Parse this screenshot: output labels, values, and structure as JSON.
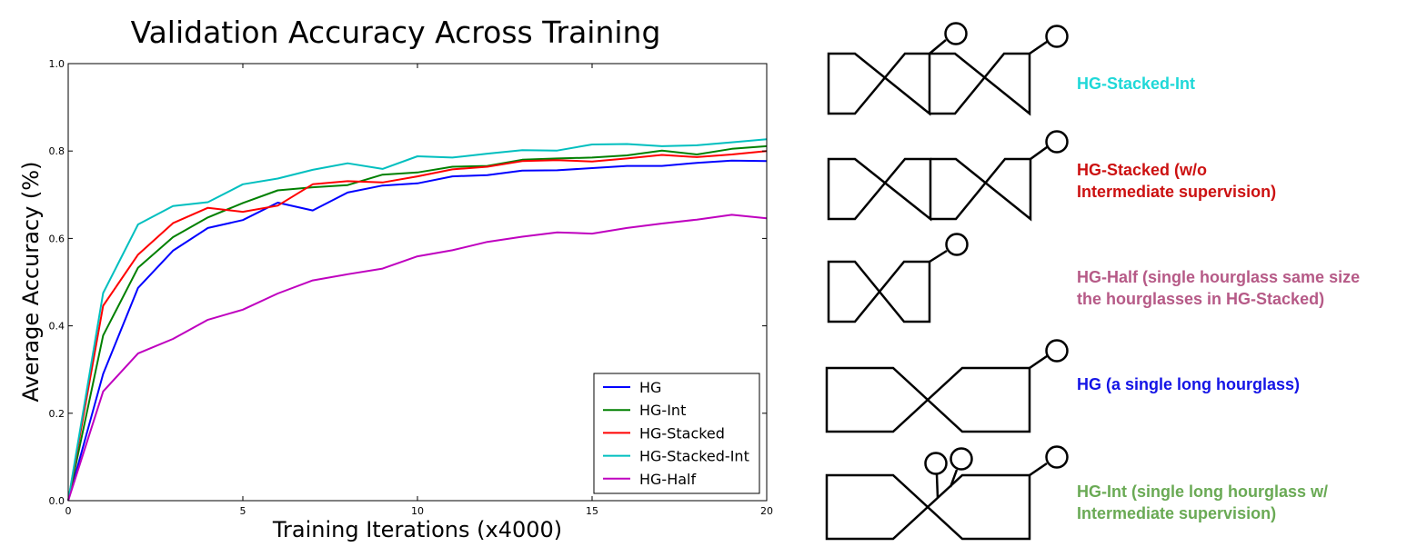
{
  "chart_data": {
    "type": "line",
    "title": "Validation Accuracy Across Training",
    "xlabel": "Training Iterations (x4000)",
    "ylabel": "Average Accuracy (%)",
    "xlim": [
      0,
      20
    ],
    "ylim": [
      0.0,
      1.0
    ],
    "xticks": [
      "0",
      "5",
      "10",
      "15",
      "20"
    ],
    "yticks": [
      "0.0",
      "0.2",
      "0.4",
      "0.6",
      "0.8",
      "1.0"
    ],
    "grid": false,
    "legend_position": "lower-right",
    "x": [
      0,
      1,
      2,
      3,
      4,
      5,
      6,
      7,
      8,
      9,
      10,
      11,
      12,
      13,
      14,
      15,
      16,
      17,
      18,
      19,
      20
    ],
    "series": [
      {
        "name": "HG",
        "color": "#0000ff",
        "values": [
          0.0,
          0.29,
          0.487,
          0.572,
          0.624,
          0.642,
          0.682,
          0.664,
          0.705,
          0.721,
          0.726,
          0.742,
          0.745,
          0.755,
          0.756,
          0.761,
          0.766,
          0.766,
          0.773,
          0.778,
          0.777
        ]
      },
      {
        "name": "HG-Int",
        "color": "#008000",
        "values": [
          0.0,
          0.378,
          0.533,
          0.603,
          0.648,
          0.681,
          0.71,
          0.717,
          0.722,
          0.746,
          0.751,
          0.764,
          0.766,
          0.78,
          0.783,
          0.785,
          0.79,
          0.801,
          0.792,
          0.805,
          0.811
        ]
      },
      {
        "name": "HG-Stacked",
        "color": "#ff0000",
        "values": [
          0.0,
          0.446,
          0.563,
          0.635,
          0.67,
          0.661,
          0.675,
          0.724,
          0.731,
          0.728,
          0.742,
          0.758,
          0.764,
          0.777,
          0.779,
          0.776,
          0.783,
          0.791,
          0.786,
          0.792,
          0.8
        ]
      },
      {
        "name": "HG-Stacked-Int",
        "color": "#00bfbf",
        "values": [
          0.0,
          0.475,
          0.632,
          0.674,
          0.683,
          0.724,
          0.737,
          0.757,
          0.772,
          0.759,
          0.788,
          0.785,
          0.794,
          0.802,
          0.801,
          0.815,
          0.816,
          0.811,
          0.813,
          0.82,
          0.827
        ]
      },
      {
        "name": "HG-Half",
        "color": "#bf00bf",
        "values": [
          0.0,
          0.25,
          0.337,
          0.37,
          0.414,
          0.437,
          0.474,
          0.504,
          0.518,
          0.531,
          0.559,
          0.573,
          0.592,
          0.604,
          0.614,
          0.611,
          0.624,
          0.634,
          0.643,
          0.654,
          0.646
        ]
      }
    ]
  },
  "diagram": {
    "items": [
      {
        "label_lines": [
          "HG-Stacked-Int"
        ],
        "color": "#1fd8d8"
      },
      {
        "label_lines": [
          "HG-Stacked (w/o",
          "Intermediate supervision)"
        ],
        "color": "#cc1111"
      },
      {
        "label_lines": [
          "HG-Half (single hourglass same size",
          "the hourglasses in HG-Stacked)"
        ],
        "color": "#b65a87"
      },
      {
        "label_lines": [
          "HG (a single long hourglass)"
        ],
        "color": "#1414e6"
      },
      {
        "label_lines": [
          "HG-Int (single long hourglass w/",
          "Intermediate supervision)"
        ],
        "color": "#6aaa55"
      }
    ]
  }
}
